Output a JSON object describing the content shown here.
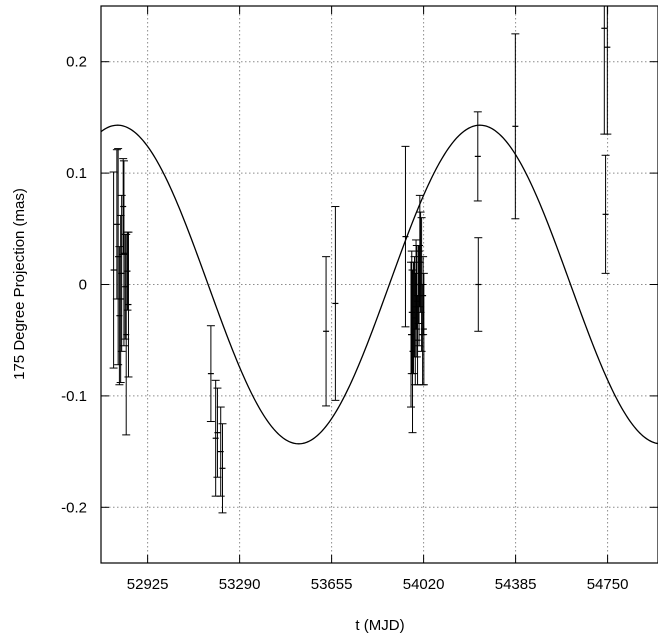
{
  "chart_data": {
    "type": "scatter",
    "xlabel": "t (MJD)",
    "ylabel": "175 Degree Projection (mas)",
    "xlim": [
      52740,
      54950
    ],
    "ylim": [
      -0.25,
      0.25
    ],
    "x_ticks": [
      52925,
      53290,
      53655,
      54020,
      54385,
      54750
    ],
    "y_ticks": [
      -0.2,
      -0.1,
      0,
      0.1,
      0.2
    ],
    "y_tick_labels": [
      "-0.2",
      "-0.1",
      "0",
      "0.1",
      "0.2"
    ],
    "grid": true,
    "colors": {
      "line": "#000000",
      "grid": "#8c8c8c",
      "points": "#000000"
    },
    "model_curve": {
      "type": "sinusoid",
      "amplitude": 0.143,
      "period_days": 1438,
      "center_mjd": 53884,
      "trough_mjd": 53524
    },
    "points": [
      {
        "x": 52790,
        "y": 0.013,
        "err": 0.088
      },
      {
        "x": 52803,
        "y": 0.054,
        "err": 0.067
      },
      {
        "x": 52808,
        "y": 0.025,
        "err": 0.097
      },
      {
        "x": 52813,
        "y": -0.028,
        "err": 0.062
      },
      {
        "x": 52818,
        "y": -0.013,
        "err": 0.075
      },
      {
        "x": 52822,
        "y": 0.01,
        "err": 0.07
      },
      {
        "x": 52828,
        "y": 0.07,
        "err": 0.043
      },
      {
        "x": 52831,
        "y": 0.028,
        "err": 0.083
      },
      {
        "x": 52836,
        "y": -0.002,
        "err": 0.047
      },
      {
        "x": 52840,
        "y": -0.045,
        "err": 0.09
      },
      {
        "x": 52845,
        "y": 0.012,
        "err": 0.035
      },
      {
        "x": 52849,
        "y": -0.018,
        "err": 0.065
      },
      {
        "x": 53176,
        "y": -0.08,
        "err": 0.043
      },
      {
        "x": 53195,
        "y": -0.138,
        "err": 0.052
      },
      {
        "x": 53202,
        "y": -0.133,
        "err": 0.04
      },
      {
        "x": 53215,
        "y": -0.15,
        "err": 0.04
      },
      {
        "x": 53222,
        "y": -0.165,
        "err": 0.04
      },
      {
        "x": 53633,
        "y": -0.042,
        "err": 0.067
      },
      {
        "x": 53670,
        "y": -0.017,
        "err": 0.087
      },
      {
        "x": 53948,
        "y": 0.043,
        "err": 0.081
      },
      {
        "x": 53970,
        "y": -0.045,
        "err": 0.065
      },
      {
        "x": 53973,
        "y": -0.025,
        "err": 0.055
      },
      {
        "x": 53976,
        "y": -0.06,
        "err": 0.073
      },
      {
        "x": 53980,
        "y": -0.03,
        "err": 0.05
      },
      {
        "x": 53984,
        "y": -0.02,
        "err": 0.045
      },
      {
        "x": 53987,
        "y": -0.04,
        "err": 0.05
      },
      {
        "x": 53990,
        "y": 0.0,
        "err": 0.04
      },
      {
        "x": 53993,
        "y": -0.015,
        "err": 0.05
      },
      {
        "x": 53996,
        "y": -0.05,
        "err": 0.04
      },
      {
        "x": 53999,
        "y": 0.0,
        "err": 0.035
      },
      {
        "x": 54002,
        "y": -0.01,
        "err": 0.045
      },
      {
        "x": 54005,
        "y": 0.03,
        "err": 0.05
      },
      {
        "x": 54008,
        "y": 0.02,
        "err": 0.045
      },
      {
        "x": 54012,
        "y": 0.0,
        "err": 0.06
      },
      {
        "x": 54016,
        "y": -0.045,
        "err": 0.045
      },
      {
        "x": 54018,
        "y": -0.01,
        "err": 0.035
      },
      {
        "x": 54021,
        "y": -0.04,
        "err": 0.05
      },
      {
        "x": 54235,
        "y": 0.115,
        "err": 0.04
      },
      {
        "x": 54237,
        "y": 0.0,
        "err": 0.042
      },
      {
        "x": 54384,
        "y": 0.142,
        "err": 0.083
      },
      {
        "x": 54737,
        "y": 0.23,
        "err": 0.095
      },
      {
        "x": 54742,
        "y": 0.063,
        "err": 0.053
      },
      {
        "x": 54749,
        "y": 0.213,
        "err": 0.078
      }
    ]
  }
}
